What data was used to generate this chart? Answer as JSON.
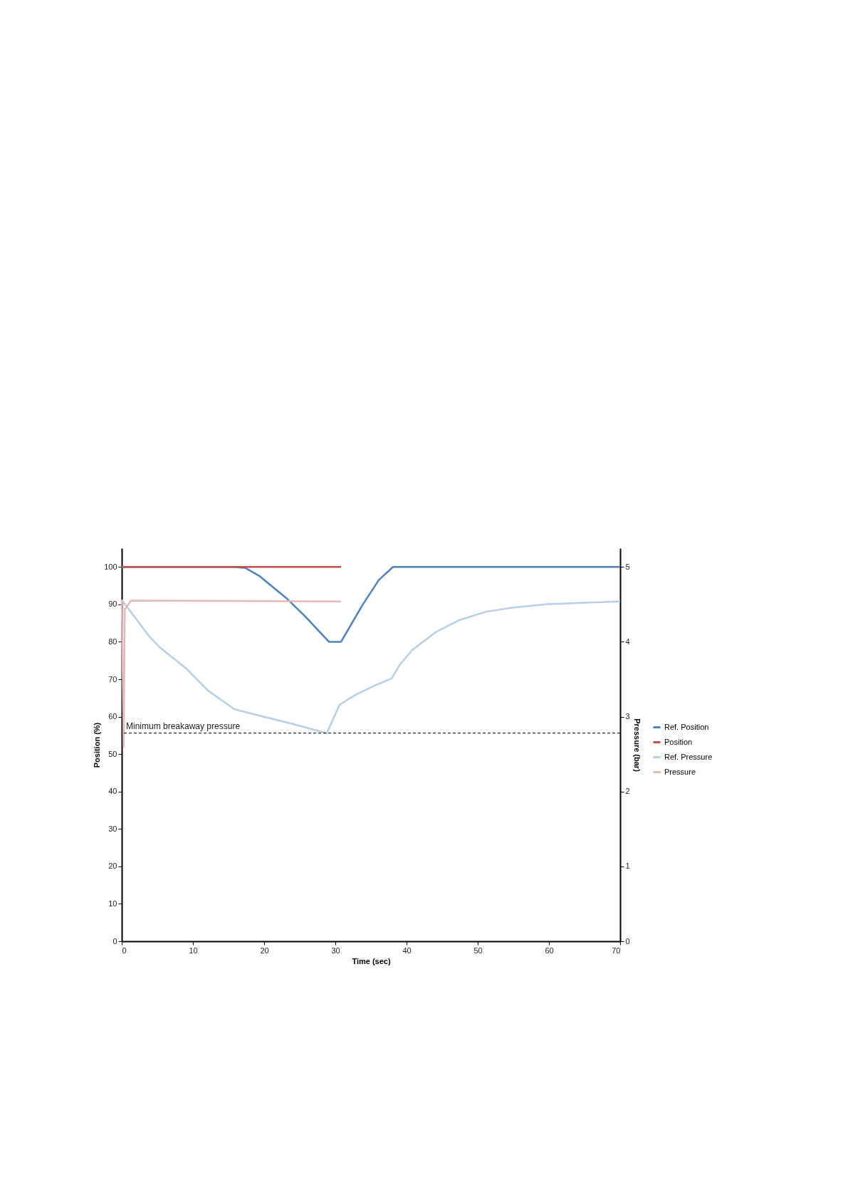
{
  "chart_data": {
    "type": "line",
    "xlabel": "Time (sec)",
    "ylabel": "Position (%)",
    "y2label": "Pressure (bar)",
    "xlim": [
      0,
      70
    ],
    "xticks": [
      0,
      10,
      20,
      30,
      40,
      50,
      60,
      70
    ],
    "ylim": [
      0,
      105
    ],
    "yticks": [
      0,
      10,
      20,
      30,
      40,
      50,
      60,
      70,
      80,
      90,
      100
    ],
    "y2lim": [
      0,
      5.25
    ],
    "y2ticks": [
      0,
      1,
      2,
      3,
      4,
      5
    ],
    "grid": false,
    "legend": "right",
    "line_style": "solid",
    "series": [
      {
        "name": "Ref. Position",
        "color": "#4f81bd",
        "x": [
          0,
          15.8,
          17.4,
          19.4,
          23.1,
          25.8,
          29.1,
          30.8,
          33.8,
          36.1,
          38.1,
          70
        ],
        "values": [
          100,
          100,
          99.7,
          97.5,
          91.7,
          86.7,
          80,
          80,
          89.8,
          96.5,
          100,
          100
        ]
      },
      {
        "name": "Position",
        "color": "#c0504d",
        "x": [
          0,
          30.8
        ],
        "values": [
          100,
          100
        ]
      },
      {
        "name": "Ref. Pressure",
        "color": "#b9cde5",
        "axis": "y2",
        "x": [
          0,
          3.8,
          5.4,
          9.1,
          12.1,
          15.8,
          19.1,
          24.1,
          28.8,
          30.6,
          32.8,
          35.4,
          37.9,
          39.1,
          40.8,
          44.1,
          47.4,
          51.1,
          54.4,
          59.4,
          64.4,
          70
        ],
        "values": [
          4.56,
          4.08,
          3.92,
          3.64,
          3.35,
          3.1,
          3.02,
          2.9,
          2.78,
          3.16,
          3.29,
          3.41,
          3.51,
          3.7,
          3.89,
          4.13,
          4.29,
          4.4,
          4.45,
          4.5,
          4.52,
          4.54
        ]
      },
      {
        "name": "Pressure",
        "color": "#e6b9b8",
        "axis": "y2",
        "x": [
          0,
          0.27,
          0.43,
          1.27,
          30.8
        ],
        "values": [
          4.56,
          2.6,
          4.43,
          4.55,
          4.54
        ]
      }
    ],
    "ref_lines": [
      {
        "axis": "y2",
        "value": 2.78,
        "label": "Minimum breakaway pressure",
        "color": "#000000",
        "line_style": "dashed"
      }
    ]
  }
}
